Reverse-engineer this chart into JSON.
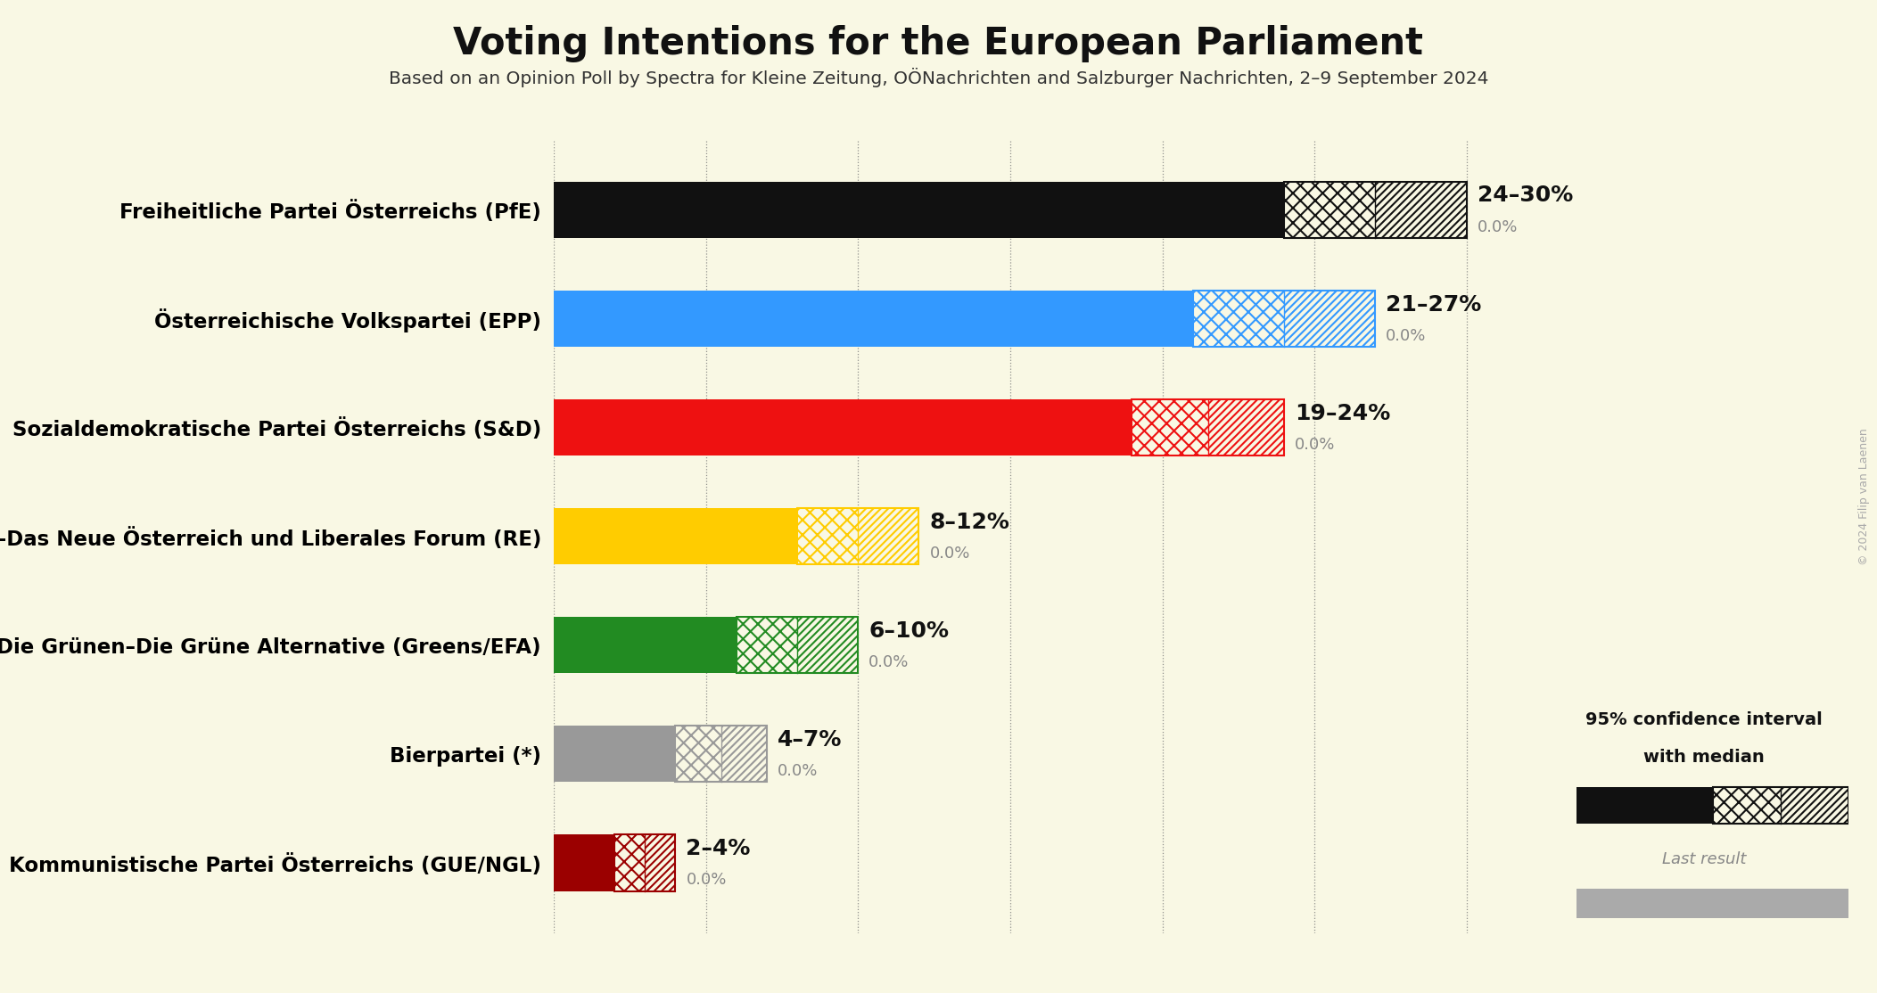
{
  "title": "Voting Intentions for the European Parliament",
  "subtitle": "Based on an Opinion Poll by Spectra for Kleine Zeitung, OÖNachrichten and Salzburger Nachrichten, 2–9 September 2024",
  "background_color": "#f9f8e4",
  "parties": [
    {
      "name": "Freiheitliche Partei Österreichs (PfE)",
      "low": 24,
      "high": 30,
      "last": 0.0,
      "color": "#111111",
      "label": "24–30%"
    },
    {
      "name": "Österreichische Volkspartei (EPP)",
      "low": 21,
      "high": 27,
      "last": 0.0,
      "color": "#3399ff",
      "label": "21–27%"
    },
    {
      "name": "Sozialdemokratische Partei Österreichs (S&D)",
      "low": 19,
      "high": 24,
      "last": 0.0,
      "color": "#ee1111",
      "label": "19–24%"
    },
    {
      "name": "NEOS–Das Neue Österreich und Liberales Forum (RE)",
      "low": 8,
      "high": 12,
      "last": 0.0,
      "color": "#ffcc00",
      "label": "8–12%"
    },
    {
      "name": "Die Grünen–Die Grüne Alternative (Greens/EFA)",
      "low": 6,
      "high": 10,
      "last": 0.0,
      "color": "#228B22",
      "label": "6–10%"
    },
    {
      "name": "Bierpartei (*)",
      "low": 4,
      "high": 7,
      "last": 0.0,
      "color": "#999999",
      "label": "4–7%"
    },
    {
      "name": "Kommunistische Partei Österreichs (GUE/NGL)",
      "low": 2,
      "high": 4,
      "last": 0.0,
      "color": "#9B0000",
      "label": "2–4%"
    }
  ],
  "xlim_max": 33,
  "grid_values": [
    0,
    5,
    10,
    15,
    20,
    25,
    30
  ],
  "copyright": "© 2024 Filip van Laenen",
  "legend_ci_text1": "95% confidence interval",
  "legend_ci_text2": "with median",
  "legend_last_text": "Last result"
}
